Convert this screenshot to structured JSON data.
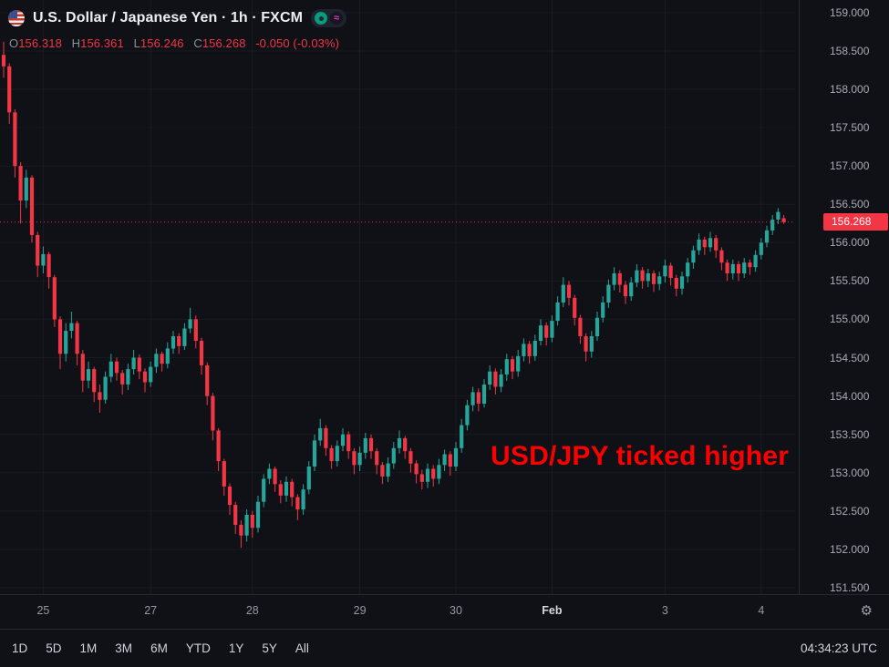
{
  "header": {
    "title": "U.S. Dollar / Japanese Yen · 1h · FXCM",
    "toggle_glyph": "≈",
    "ohlc": {
      "o_label": "O",
      "o_value": "156.318",
      "h_label": "H",
      "h_value": "156.361",
      "l_label": "L",
      "l_value": "156.246",
      "c_label": "C",
      "c_value": "156.268",
      "change": "-0.050 (-0.03%)"
    }
  },
  "annotation": {
    "text": "USD/JPY ticked higher",
    "color": "#fb0000"
  },
  "price_axis": {
    "last_price_label": "156.268"
  },
  "time_axis": {
    "labels": [
      {
        "text": "25",
        "index": 7
      },
      {
        "text": "27",
        "index": 26
      },
      {
        "text": "28",
        "index": 44
      },
      {
        "text": "29",
        "index": 63
      },
      {
        "text": "30",
        "index": 80
      },
      {
        "text": "Feb",
        "index": 97,
        "strong": true
      },
      {
        "text": "3",
        "index": 117
      },
      {
        "text": "4",
        "index": 134
      }
    ],
    "settings_glyph": "⚙"
  },
  "toolbar": {
    "ranges": [
      "1D",
      "5D",
      "1M",
      "3M",
      "6M",
      "YTD",
      "1Y",
      "5Y",
      "All"
    ],
    "clock": "04:34:23 UTC"
  },
  "chart_data": {
    "type": "candlestick",
    "symbol": "USD/JPY",
    "interval": "1h",
    "up_color": "#26a69a",
    "down_color": "#f23645",
    "grid": true,
    "y_range": [
      151.416,
      159.165
    ],
    "price_ticks": [
      159.0,
      158.5,
      158.0,
      157.5,
      157.0,
      156.5,
      156.0,
      155.5,
      155.0,
      154.5,
      154.0,
      153.5,
      153.0,
      152.5,
      152.0,
      151.5
    ],
    "last_price": 156.268,
    "candles": [
      [
        158.45,
        158.62,
        158.15,
        158.3
      ],
      [
        158.3,
        158.34,
        157.55,
        157.7
      ],
      [
        157.7,
        157.74,
        156.85,
        157.0
      ],
      [
        157.0,
        157.05,
        156.25,
        156.55
      ],
      [
        156.55,
        156.95,
        156.45,
        156.85
      ],
      [
        156.85,
        156.88,
        156.0,
        156.1
      ],
      [
        156.1,
        156.14,
        155.55,
        155.7
      ],
      [
        155.7,
        155.95,
        155.6,
        155.85
      ],
      [
        155.85,
        155.88,
        155.4,
        155.55
      ],
      [
        155.55,
        155.58,
        154.9,
        155.0
      ],
      [
        155.0,
        155.04,
        154.35,
        154.55
      ],
      [
        154.55,
        154.95,
        154.45,
        154.85
      ],
      [
        154.85,
        155.1,
        154.75,
        154.95
      ],
      [
        154.95,
        154.98,
        154.4,
        154.55
      ],
      [
        154.55,
        154.6,
        154.05,
        154.2
      ],
      [
        154.2,
        154.45,
        154.1,
        154.35
      ],
      [
        154.35,
        154.38,
        153.92,
        154.05
      ],
      [
        154.05,
        154.15,
        153.78,
        153.95
      ],
      [
        153.95,
        154.32,
        153.9,
        154.25
      ],
      [
        154.25,
        154.55,
        154.18,
        154.45
      ],
      [
        154.45,
        154.5,
        154.2,
        154.3
      ],
      [
        154.3,
        154.34,
        154.02,
        154.15
      ],
      [
        154.15,
        154.42,
        154.08,
        154.35
      ],
      [
        154.35,
        154.6,
        154.28,
        154.5
      ],
      [
        154.5,
        154.54,
        154.22,
        154.32
      ],
      [
        154.32,
        154.36,
        154.05,
        154.18
      ],
      [
        154.18,
        154.45,
        154.12,
        154.38
      ],
      [
        154.38,
        154.62,
        154.3,
        154.55
      ],
      [
        154.55,
        154.58,
        154.32,
        154.42
      ],
      [
        154.42,
        154.7,
        154.36,
        154.62
      ],
      [
        154.62,
        154.85,
        154.55,
        154.78
      ],
      [
        154.78,
        154.82,
        154.55,
        154.65
      ],
      [
        154.65,
        154.95,
        154.6,
        154.88
      ],
      [
        154.88,
        155.15,
        154.82,
        155.0
      ],
      [
        155.0,
        155.05,
        154.62,
        154.72
      ],
      [
        154.72,
        154.76,
        154.28,
        154.4
      ],
      [
        154.4,
        154.44,
        153.88,
        154.0
      ],
      [
        154.0,
        154.04,
        153.42,
        153.55
      ],
      [
        153.55,
        153.58,
        153.02,
        153.15
      ],
      [
        153.15,
        153.18,
        152.7,
        152.82
      ],
      [
        152.82,
        152.86,
        152.45,
        152.58
      ],
      [
        152.58,
        152.62,
        152.2,
        152.32
      ],
      [
        152.32,
        152.38,
        152.02,
        152.18
      ],
      [
        152.18,
        152.52,
        152.1,
        152.45
      ],
      [
        152.45,
        152.5,
        152.15,
        152.28
      ],
      [
        152.28,
        152.7,
        152.22,
        152.62
      ],
      [
        152.62,
        152.98,
        152.55,
        152.92
      ],
      [
        152.92,
        153.12,
        152.85,
        153.05
      ],
      [
        153.05,
        153.08,
        152.75,
        152.85
      ],
      [
        152.85,
        152.9,
        152.6,
        152.7
      ],
      [
        152.7,
        152.95,
        152.62,
        152.88
      ],
      [
        152.88,
        152.92,
        152.56,
        152.68
      ],
      [
        152.68,
        152.72,
        152.38,
        152.52
      ],
      [
        152.52,
        152.85,
        152.45,
        152.78
      ],
      [
        152.78,
        153.15,
        152.72,
        153.08
      ],
      [
        153.08,
        153.5,
        153.02,
        153.42
      ],
      [
        153.42,
        153.7,
        153.35,
        153.58
      ],
      [
        153.58,
        153.62,
        153.22,
        153.32
      ],
      [
        153.32,
        153.36,
        153.05,
        153.15
      ],
      [
        153.15,
        153.42,
        153.08,
        153.35
      ],
      [
        153.35,
        153.58,
        153.28,
        153.5
      ],
      [
        153.5,
        153.54,
        153.18,
        153.28
      ],
      [
        153.28,
        153.32,
        152.98,
        153.1
      ],
      [
        153.1,
        153.34,
        153.02,
        153.26
      ],
      [
        153.26,
        153.52,
        153.18,
        153.45
      ],
      [
        153.45,
        153.5,
        153.18,
        153.28
      ],
      [
        153.28,
        153.32,
        152.98,
        153.1
      ],
      [
        153.1,
        153.14,
        152.85,
        152.95
      ],
      [
        152.95,
        153.2,
        152.88,
        153.12
      ],
      [
        153.12,
        153.4,
        153.05,
        153.32
      ],
      [
        153.32,
        153.55,
        153.25,
        153.45
      ],
      [
        153.45,
        153.48,
        153.18,
        153.28
      ],
      [
        153.28,
        153.32,
        153.0,
        153.12
      ],
      [
        153.12,
        153.16,
        152.86,
        152.98
      ],
      [
        152.98,
        153.04,
        152.78,
        152.88
      ],
      [
        152.88,
        153.12,
        152.8,
        153.05
      ],
      [
        153.05,
        153.1,
        152.82,
        152.92
      ],
      [
        152.92,
        153.18,
        152.85,
        153.1
      ],
      [
        153.1,
        153.3,
        153.02,
        153.24
      ],
      [
        153.24,
        153.28,
        152.96,
        153.08
      ],
      [
        153.08,
        153.4,
        153.02,
        153.32
      ],
      [
        153.32,
        153.7,
        153.26,
        153.62
      ],
      [
        153.62,
        153.95,
        153.55,
        153.88
      ],
      [
        153.88,
        154.12,
        153.8,
        154.05
      ],
      [
        154.05,
        154.1,
        153.8,
        153.9
      ],
      [
        153.9,
        154.22,
        153.85,
        154.15
      ],
      [
        154.15,
        154.4,
        154.08,
        154.32
      ],
      [
        154.32,
        154.36,
        154.02,
        154.12
      ],
      [
        154.12,
        154.35,
        154.05,
        154.28
      ],
      [
        154.28,
        154.55,
        154.2,
        154.48
      ],
      [
        154.48,
        154.52,
        154.22,
        154.32
      ],
      [
        154.32,
        154.6,
        154.25,
        154.52
      ],
      [
        154.52,
        154.75,
        154.45,
        154.68
      ],
      [
        154.68,
        154.72,
        154.42,
        154.52
      ],
      [
        154.52,
        154.8,
        154.46,
        154.72
      ],
      [
        154.72,
        155.0,
        154.66,
        154.92
      ],
      [
        154.92,
        154.96,
        154.66,
        154.76
      ],
      [
        154.76,
        155.05,
        154.7,
        154.98
      ],
      [
        154.98,
        155.3,
        154.92,
        155.22
      ],
      [
        155.22,
        155.55,
        155.16,
        155.45
      ],
      [
        155.45,
        155.5,
        155.18,
        155.28
      ],
      [
        155.28,
        155.32,
        154.92,
        155.02
      ],
      [
        155.02,
        155.06,
        154.68,
        154.78
      ],
      [
        154.78,
        154.82,
        154.45,
        154.58
      ],
      [
        154.58,
        154.85,
        154.5,
        154.78
      ],
      [
        154.78,
        155.1,
        154.72,
        155.02
      ],
      [
        155.02,
        155.3,
        154.96,
        155.22
      ],
      [
        155.22,
        155.52,
        155.15,
        155.45
      ],
      [
        155.45,
        155.68,
        155.38,
        155.6
      ],
      [
        155.6,
        155.64,
        155.35,
        155.45
      ],
      [
        155.45,
        155.5,
        155.2,
        155.3
      ],
      [
        155.3,
        155.55,
        155.24,
        155.48
      ],
      [
        155.48,
        155.72,
        155.42,
        155.64
      ],
      [
        155.64,
        155.68,
        155.4,
        155.5
      ],
      [
        155.5,
        155.66,
        155.42,
        155.6
      ],
      [
        155.6,
        155.64,
        155.36,
        155.46
      ],
      [
        155.46,
        155.62,
        155.38,
        155.56
      ],
      [
        155.56,
        155.78,
        155.48,
        155.7
      ],
      [
        155.7,
        155.74,
        155.44,
        155.54
      ],
      [
        155.54,
        155.58,
        155.3,
        155.4
      ],
      [
        155.4,
        155.62,
        155.32,
        155.56
      ],
      [
        155.56,
        155.8,
        155.48,
        155.74
      ],
      [
        155.74,
        155.96,
        155.66,
        155.9
      ],
      [
        155.9,
        156.12,
        155.84,
        156.04
      ],
      [
        156.04,
        156.08,
        155.84,
        155.94
      ],
      [
        155.94,
        156.14,
        155.88,
        156.06
      ],
      [
        156.06,
        156.1,
        155.8,
        155.9
      ],
      [
        155.9,
        155.94,
        155.64,
        155.74
      ],
      [
        155.74,
        155.78,
        155.5,
        155.6
      ],
      [
        155.6,
        155.78,
        155.52,
        155.72
      ],
      [
        155.72,
        155.76,
        155.5,
        155.6
      ],
      [
        155.6,
        155.8,
        155.54,
        155.74
      ],
      [
        155.74,
        155.78,
        155.58,
        155.68
      ],
      [
        155.68,
        155.9,
        155.62,
        155.84
      ],
      [
        155.84,
        156.06,
        155.78,
        156.0
      ],
      [
        156.0,
        156.22,
        155.94,
        156.16
      ],
      [
        156.16,
        156.36,
        156.1,
        156.3
      ],
      [
        156.3,
        156.45,
        156.24,
        156.4
      ],
      [
        156.318,
        156.361,
        156.246,
        156.268
      ]
    ]
  }
}
